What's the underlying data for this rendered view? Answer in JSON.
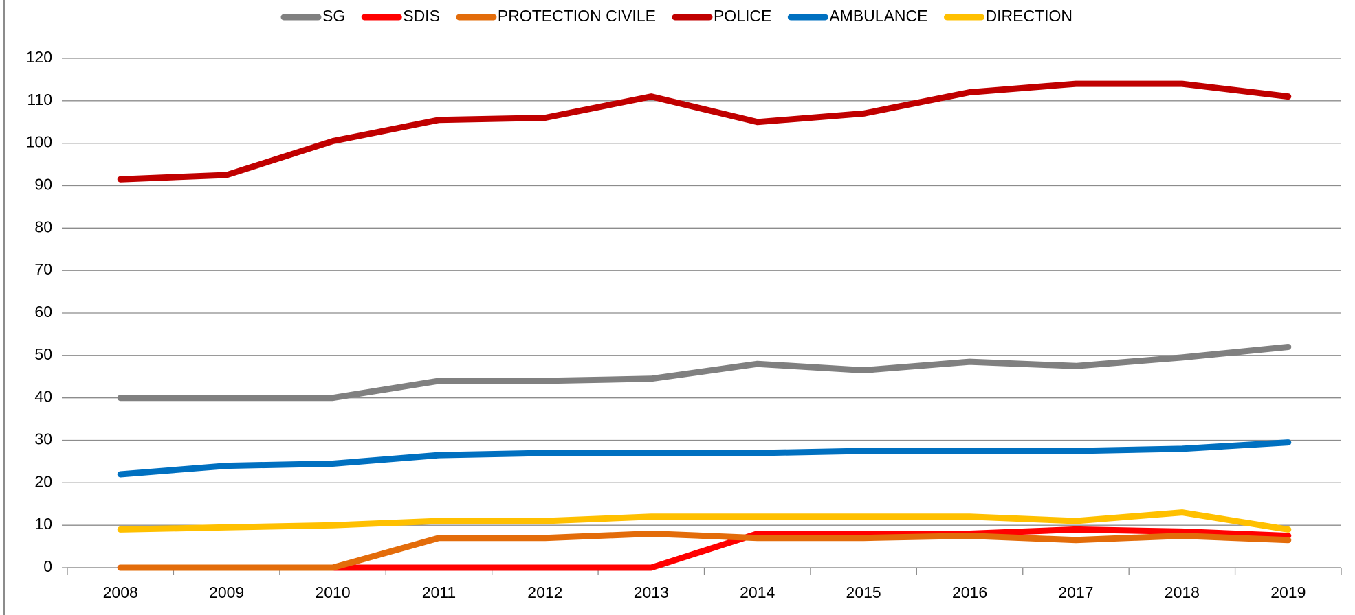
{
  "chart_data": {
    "type": "line",
    "categories": [
      "2008",
      "2009",
      "2010",
      "2011",
      "2012",
      "2013",
      "2014",
      "2015",
      "2016",
      "2017",
      "2018",
      "2019"
    ],
    "series": [
      {
        "name": "SG",
        "color": "#808080",
        "values": [
          40,
          40,
          40,
          44,
          44,
          44.5,
          48,
          46.5,
          48.5,
          47.5,
          49.5,
          52
        ]
      },
      {
        "name": "SDIS",
        "color": "#ff0000",
        "values": [
          0,
          0,
          0,
          0,
          0,
          0,
          8,
          8,
          8,
          9,
          8.5,
          7.5
        ]
      },
      {
        "name": "PROTECTION CIVILE",
        "color": "#e36c0a",
        "values": [
          0,
          0,
          0,
          7,
          7,
          8,
          7,
          7,
          7.5,
          6.5,
          7.5,
          6.5
        ]
      },
      {
        "name": "POLICE",
        "color": "#c00000",
        "values": [
          91.5,
          92.5,
          100.5,
          105.5,
          106,
          111,
          105,
          107,
          112,
          114,
          114,
          111
        ]
      },
      {
        "name": "AMBULANCE",
        "color": "#0070c0",
        "values": [
          22,
          24,
          24.5,
          26.5,
          27,
          27,
          27,
          27.5,
          27.5,
          27.5,
          28,
          29.5
        ]
      },
      {
        "name": "DIRECTION",
        "color": "#ffc000",
        "values": [
          9,
          9.5,
          10,
          11,
          11,
          12,
          12,
          12,
          12,
          11,
          13,
          9
        ]
      }
    ],
    "ylim": [
      0,
      120
    ],
    "yticks": [
      0,
      10,
      20,
      30,
      40,
      50,
      60,
      70,
      80,
      90,
      100,
      110,
      120
    ],
    "grid": true,
    "legend": "top"
  }
}
